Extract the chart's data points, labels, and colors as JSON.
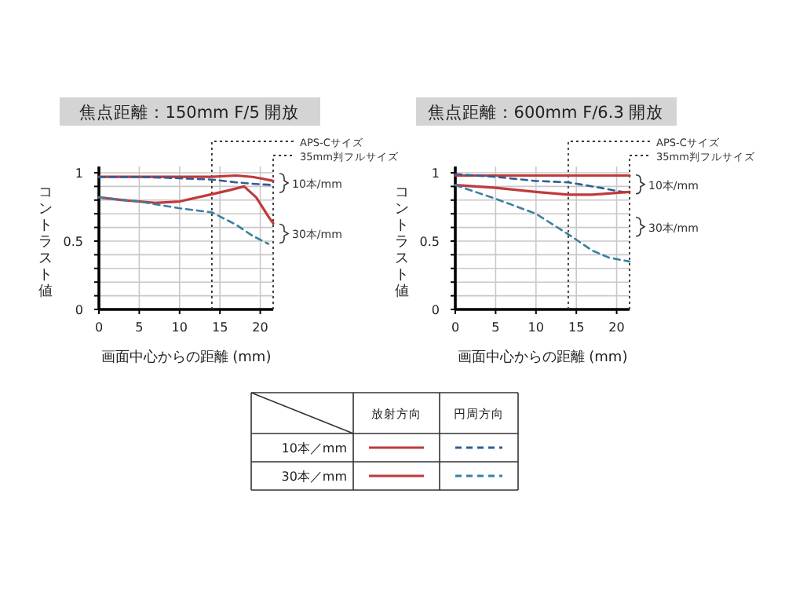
{
  "chart_data": [
    {
      "type": "line",
      "title": "焦点距離：150mm  F/5 開放",
      "xlabel": "画面中心からの距離 (mm)",
      "ylabel": "コントラスト値",
      "xlim": [
        0,
        21.6
      ],
      "xticks": [
        0,
        5,
        10,
        15,
        20
      ],
      "ylim": [
        0,
        1
      ],
      "yticks": [
        0,
        {
          "value": 0.1,
          "label": null
        },
        {
          "value": 0.2,
          "label": null
        },
        {
          "value": 0.3,
          "label": null
        },
        {
          "value": 0.4,
          "label": null
        },
        0.5,
        {
          "value": 0.6,
          "label": null
        },
        {
          "value": 0.7,
          "label": null
        },
        {
          "value": 0.8,
          "label": null
        },
        {
          "value": 0.9,
          "label": null
        },
        1
      ],
      "grid": true,
      "ref_lines": [
        {
          "axis": "x",
          "value": 14,
          "label": "APS-Cサイズ",
          "line_style": "dotted"
        },
        {
          "axis": "x",
          "value": 21.6,
          "label": "35mm判フルサイズ",
          "line_style": "dotted"
        }
      ],
      "annotations": [
        "10本/mm",
        "30本/mm"
      ],
      "series": [
        {
          "color": "#c0393b",
          "line_style": "solid",
          "x": [
            0,
            5,
            10,
            14,
            17,
            19,
            20,
            21.6
          ],
          "values": [
            0.97,
            0.97,
            0.97,
            0.97,
            0.98,
            0.97,
            0.96,
            0.94
          ]
        },
        {
          "color": "#2f5f95",
          "line_style": "dashed",
          "x": [
            0,
            5,
            10,
            14,
            17,
            19,
            21.6
          ],
          "values": [
            0.97,
            0.97,
            0.96,
            0.95,
            0.93,
            0.92,
            0.91
          ]
        },
        {
          "color": "#c0393b",
          "line_style": "solid",
          "x": [
            0,
            3,
            7,
            10,
            13,
            16,
            18,
            19.5,
            21,
            21.6
          ],
          "values": [
            0.82,
            0.8,
            0.78,
            0.79,
            0.83,
            0.87,
            0.9,
            0.82,
            0.68,
            0.63
          ]
        },
        {
          "color": "#3a7fa0",
          "line_style": "dashed",
          "x": [
            0,
            5,
            10,
            14,
            17,
            19,
            21
          ],
          "values": [
            0.82,
            0.79,
            0.74,
            0.71,
            0.62,
            0.54,
            0.48
          ]
        }
      ]
    },
    {
      "type": "line",
      "title": "焦点距離：600mm  F/6.3 開放",
      "xlabel": "画面中心からの距離 (mm)",
      "ylabel": "コントラスト値",
      "xlim": [
        0,
        21.6
      ],
      "xticks": [
        0,
        5,
        10,
        15,
        20
      ],
      "ylim": [
        0,
        1
      ],
      "yticks": [
        0,
        {
          "value": 0.1,
          "label": null
        },
        {
          "value": 0.2,
          "label": null
        },
        {
          "value": 0.3,
          "label": null
        },
        {
          "value": 0.4,
          "label": null
        },
        0.5,
        {
          "value": 0.6,
          "label": null
        },
        {
          "value": 0.7,
          "label": null
        },
        {
          "value": 0.8,
          "label": null
        },
        {
          "value": 0.9,
          "label": null
        },
        1
      ],
      "grid": true,
      "ref_lines": [
        {
          "axis": "x",
          "value": 14,
          "label": "APS-Cサイズ",
          "line_style": "dotted"
        },
        {
          "axis": "x",
          "value": 21.6,
          "label": "35mm判フルサイズ",
          "line_style": "dotted"
        }
      ],
      "annotations": [
        "10本/mm",
        "30本/mm"
      ],
      "series": [
        {
          "color": "#c0393b",
          "line_style": "solid",
          "x": [
            0,
            5,
            10,
            14,
            18,
            21.6
          ],
          "values": [
            0.98,
            0.98,
            0.98,
            0.98,
            0.98,
            0.98
          ]
        },
        {
          "color": "#2f5f95",
          "line_style": "dashed",
          "x": [
            0,
            5,
            10,
            14,
            18,
            21.6
          ],
          "values": [
            0.99,
            0.97,
            0.94,
            0.93,
            0.89,
            0.85
          ]
        },
        {
          "color": "#c0393b",
          "line_style": "solid",
          "x": [
            0,
            5,
            10,
            14,
            17,
            21.6
          ],
          "values": [
            0.91,
            0.89,
            0.86,
            0.84,
            0.84,
            0.86
          ]
        },
        {
          "color": "#3a7fa0",
          "line_style": "dashed",
          "x": [
            0,
            5,
            10,
            14,
            17,
            19,
            21.6
          ],
          "values": [
            0.91,
            0.81,
            0.7,
            0.55,
            0.43,
            0.38,
            0.35
          ]
        }
      ]
    },
    {
      "type": "other",
      "annotations": [
        "放射方向",
        "円周方向",
        "10本／mm",
        "30本／mm"
      ]
    }
  ]
}
